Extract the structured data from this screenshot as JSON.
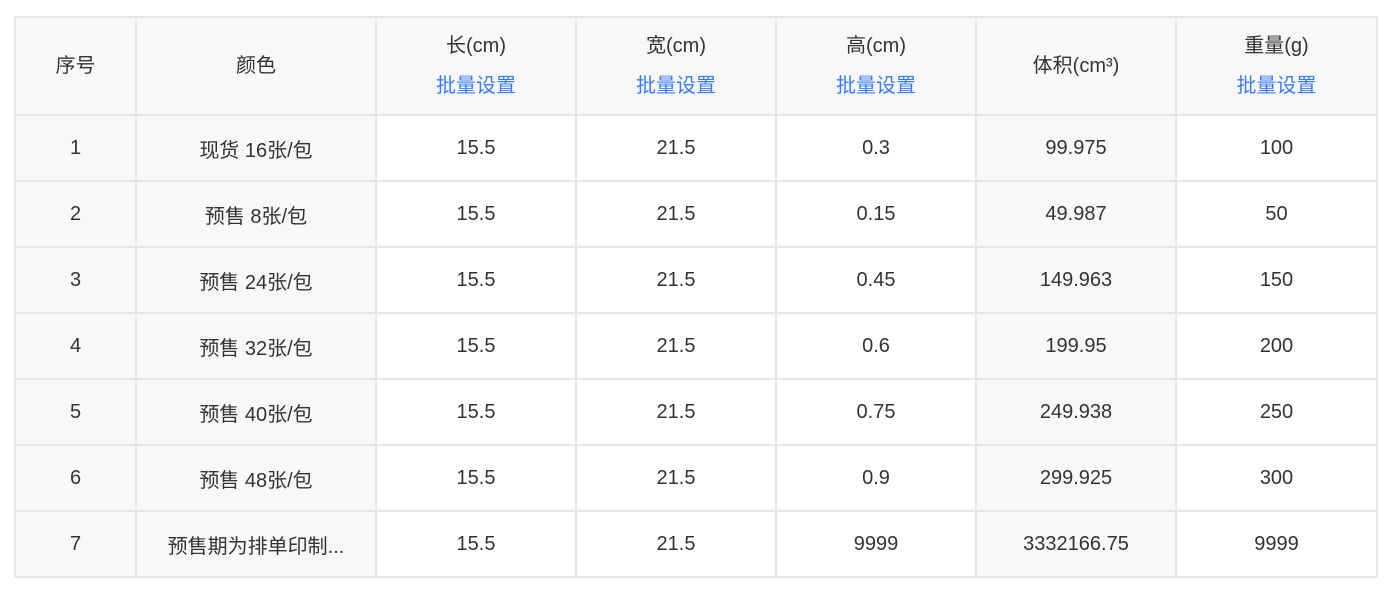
{
  "headers": [
    {
      "label": "序号"
    },
    {
      "label": "颜色"
    },
    {
      "label": "长(cm)",
      "action": "批量设置"
    },
    {
      "label": "宽(cm)",
      "action": "批量设置"
    },
    {
      "label": "高(cm)",
      "action": "批量设置"
    },
    {
      "label": "体积(cm³)"
    },
    {
      "label": "重量(g)",
      "action": "批量设置"
    }
  ],
  "rows": [
    [
      "1",
      "现货 16张/包",
      "15.5",
      "21.5",
      "0.3",
      "99.975",
      "100"
    ],
    [
      "2",
      "预售 8张/包",
      "15.5",
      "21.5",
      "0.15",
      "49.987",
      "50"
    ],
    [
      "3",
      "预售 24张/包",
      "15.5",
      "21.5",
      "0.45",
      "149.963",
      "150"
    ],
    [
      "4",
      "预售 32张/包",
      "15.5",
      "21.5",
      "0.6",
      "199.95",
      "200"
    ],
    [
      "5",
      "预售 40张/包",
      "15.5",
      "21.5",
      "0.75",
      "249.938",
      "250"
    ],
    [
      "6",
      "预售 48张/包",
      "15.5",
      "21.5",
      "0.9",
      "299.925",
      "300"
    ],
    [
      "7",
      "预售期为排单印制...",
      "15.5",
      "21.5",
      "9999",
      "3332166.75",
      "9999"
    ]
  ],
  "colors": {
    "link": "#3b7cff",
    "border": "#e6e6e6",
    "header_bg": "#f8f8f8"
  }
}
